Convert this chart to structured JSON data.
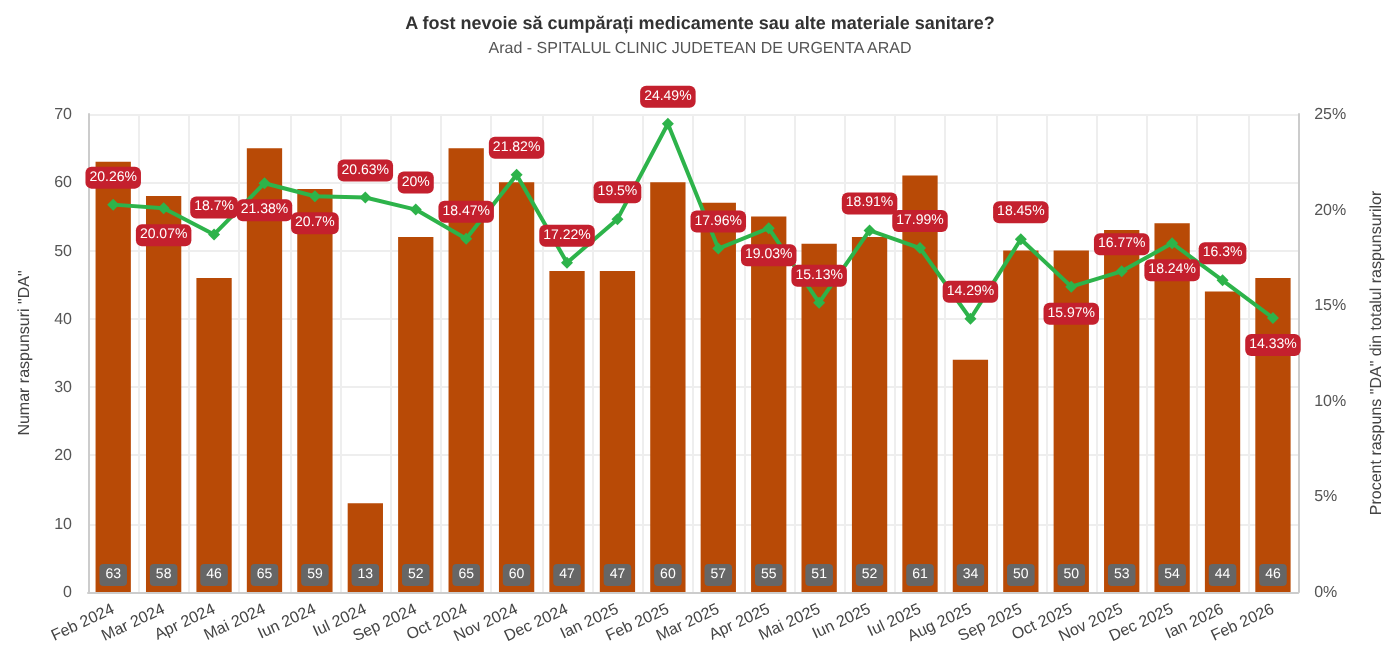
{
  "chart_data": {
    "type": "bar",
    "title": "A fost nevoie să cumpărați medicamente sau alte materiale sanitare?",
    "subtitle": "Arad - SPITALUL CLINIC JUDETEAN DE URGENTA ARAD",
    "ylabel": "Numar raspunsuri \"DA\"",
    "y2label": "Procent raspuns \"DA\" din totalul raspunsurilor",
    "categories": [
      "Feb 2024",
      "Mar 2024",
      "Apr 2024",
      "Mai 2024",
      "Iun 2024",
      "Iul 2024",
      "Sep 2024",
      "Oct 2024",
      "Nov 2024",
      "Dec 2024",
      "Ian 2025",
      "Feb 2025",
      "Mar 2025",
      "Apr 2025",
      "Mai 2025",
      "Iun 2025",
      "Iul 2025",
      "Aug 2025",
      "Sep 2025",
      "Oct 2025",
      "Nov 2025",
      "Dec 2025",
      "Ian 2026",
      "Feb 2026"
    ],
    "series": [
      {
        "color": "#b84a06",
        "values": [
          63,
          58,
          46,
          65,
          59,
          13,
          52,
          65,
          60,
          47,
          47,
          60,
          57,
          55,
          51,
          52,
          61,
          34,
          50,
          50,
          53,
          54,
          44,
          46
        ],
        "value_labels": [
          "63",
          "58",
          "46",
          "65",
          "59",
          "13",
          "52",
          "65",
          "60",
          "47",
          "47",
          "60",
          "57",
          "55",
          "51",
          "52",
          "61",
          "34",
          "50",
          "50",
          "53",
          "54",
          "44",
          "46"
        ]
      },
      {
        "type": "line",
        "axis": "y2",
        "color": "#2db34a",
        "marker": "diamond",
        "values": [
          20.26,
          20.07,
          18.7,
          21.38,
          20.7,
          20.63,
          20,
          18.47,
          21.82,
          17.22,
          19.5,
          24.49,
          17.96,
          19.03,
          15.13,
          18.91,
          17.99,
          14.29,
          18.45,
          15.97,
          16.77,
          18.24,
          16.3,
          14.33
        ],
        "value_labels": [
          "20.26%",
          "20.07%",
          "18.7%",
          "21.38%",
          "20.7%",
          "20.63%",
          "20%",
          "18.47%",
          "21.82%",
          "17.22%",
          "19.5%",
          "24.49%",
          "17.96%",
          "19.03%",
          "15.13%",
          "18.91%",
          "17.99%",
          "14.29%",
          "18.45%",
          "15.97%",
          "16.77%",
          "18.24%",
          "16.3%",
          "14.33%"
        ]
      }
    ],
    "ylim": [
      0,
      70
    ],
    "yticks": [
      0,
      10,
      20,
      30,
      40,
      50,
      60,
      70
    ],
    "y2lim": [
      0,
      25
    ],
    "y2ticks": [
      {
        "value": 0,
        "label": "0%"
      },
      {
        "value": 5,
        "label": "5%"
      },
      {
        "value": 10,
        "label": "10%"
      },
      {
        "value": 15,
        "label": "15%"
      },
      {
        "value": 20,
        "label": "20%"
      },
      {
        "value": 25,
        "label": "25%"
      }
    ],
    "grid": true
  }
}
